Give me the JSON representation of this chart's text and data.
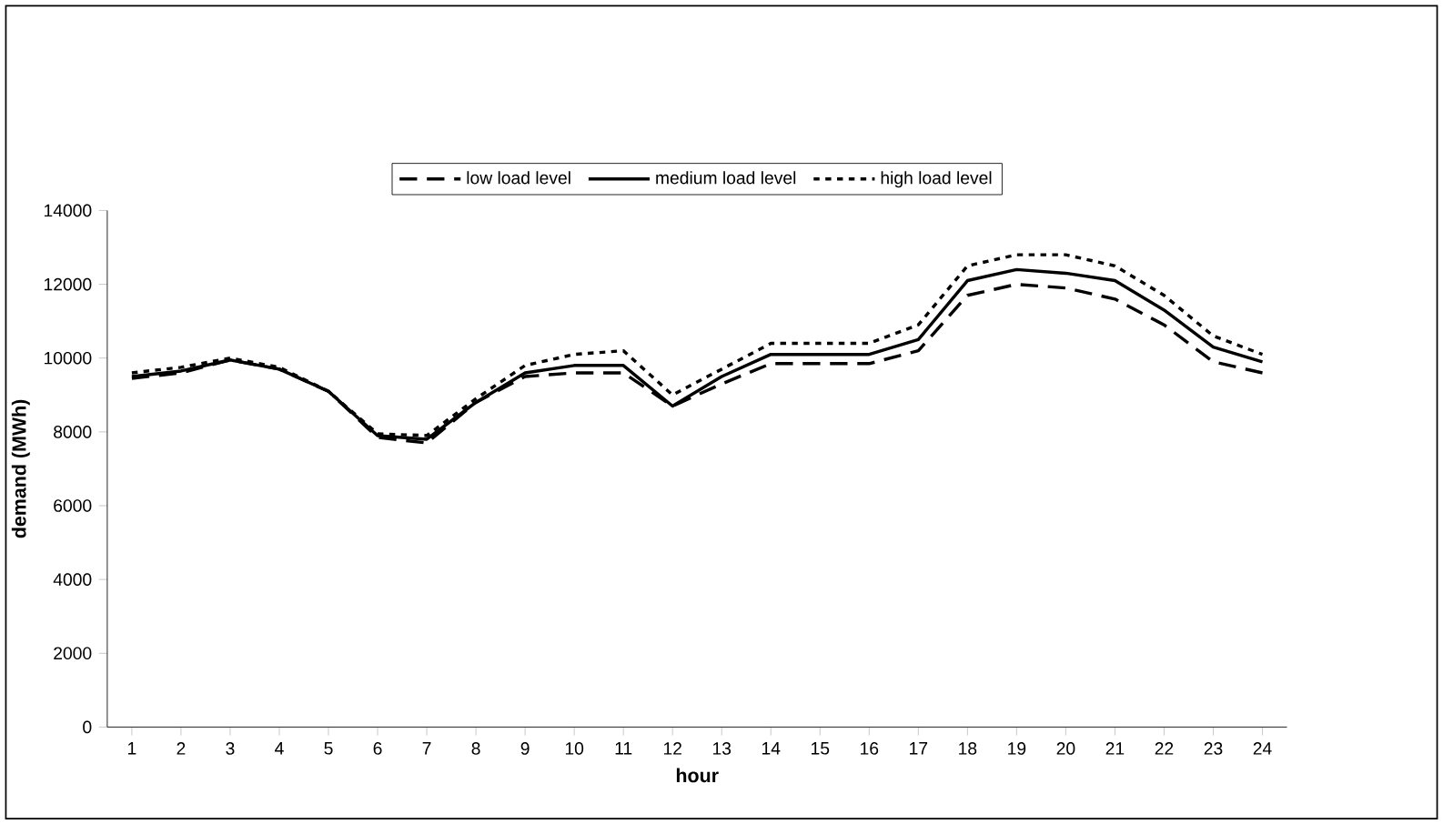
{
  "chart_data": {
    "type": "line",
    "xlabel": "hour",
    "ylabel": "demand (MWh)",
    "categories": [
      "1",
      "2",
      "3",
      "4",
      "5",
      "6",
      "7",
      "8",
      "9",
      "10",
      "11",
      "12",
      "13",
      "14",
      "15",
      "16",
      "17",
      "18",
      "19",
      "20",
      "21",
      "22",
      "23",
      "24"
    ],
    "ylim": [
      0,
      14000
    ],
    "yticks": [
      0,
      2000,
      4000,
      6000,
      8000,
      10000,
      12000,
      14000
    ],
    "legend": "top",
    "marker": "none",
    "series": [
      {
        "name": "low load level",
        "color": "#000000",
        "line_style": "dashed",
        "values": [
          9450,
          9600,
          9950,
          9700,
          9100,
          7850,
          7700,
          8800,
          9500,
          9600,
          9600,
          8700,
          9300,
          9850,
          9850,
          9850,
          10200,
          11700,
          12000,
          11900,
          11600,
          10900,
          9900,
          9600
        ]
      },
      {
        "name": "medium load level",
        "color": "#000000",
        "line_style": "solid",
        "values": [
          9500,
          9650,
          9950,
          9700,
          9100,
          7900,
          7800,
          8800,
          9600,
          9800,
          9800,
          8700,
          9500,
          10100,
          10100,
          10100,
          10500,
          12100,
          12400,
          12300,
          12100,
          11300,
          10300,
          9900
        ]
      },
      {
        "name": "high load level",
        "color": "#000000",
        "line_style": "dotted",
        "values": [
          9600,
          9750,
          10000,
          9750,
          9100,
          7950,
          7900,
          8900,
          9800,
          10100,
          10200,
          9000,
          9700,
          10400,
          10400,
          10400,
          10900,
          12500,
          12800,
          12800,
          12500,
          11700,
          10600,
          10100
        ]
      }
    ]
  }
}
